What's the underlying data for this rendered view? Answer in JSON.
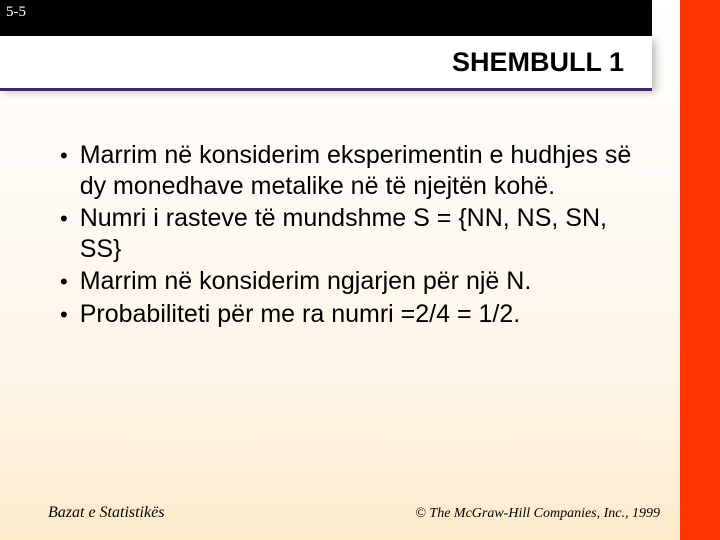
{
  "page_number": "5-5",
  "title": "SHEMBULL 1",
  "bullets": [
    "Marrim në konsiderim eksperimentin e hudhjes së dy monedhave metalike në të njejtën kohë.",
    "Numri i rasteve të mundshme S = {NN, NS, SN, SS}",
    "Marrim në konsiderim  ngjarjen për një N.",
    "Probabiliteti për me ra numri =2/4 = 1/2."
  ],
  "footer_left": "Bazat e Statistikës",
  "footer_right": "© The McGraw-Hill Companies, Inc., 1999",
  "colors": {
    "accent_bar": "#ff3300",
    "top_bar": "#000000",
    "underline": "#3a2a6b",
    "text": "#000000",
    "title_bg": "#ffffff"
  }
}
